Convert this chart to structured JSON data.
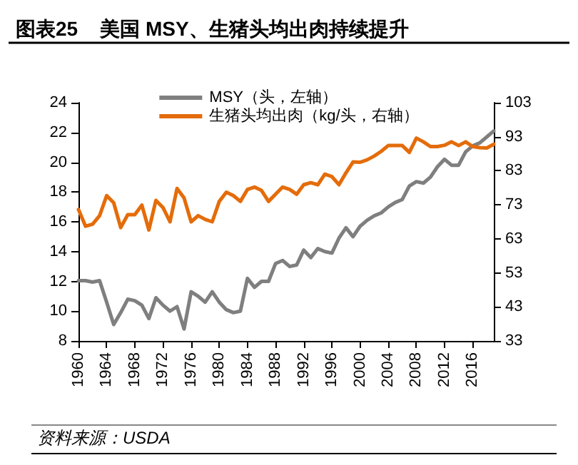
{
  "chart_data": {
    "type": "line",
    "title": "图表25    美国 MSY、生猪头均出肉持续提升",
    "x": [
      1960,
      1961,
      1962,
      1963,
      1964,
      1965,
      1966,
      1967,
      1968,
      1969,
      1970,
      1971,
      1972,
      1973,
      1974,
      1975,
      1976,
      1977,
      1978,
      1979,
      1980,
      1981,
      1982,
      1983,
      1984,
      1985,
      1986,
      1987,
      1988,
      1989,
      1990,
      1991,
      1992,
      1993,
      1994,
      1995,
      1996,
      1997,
      1998,
      1999,
      2000,
      2001,
      2002,
      2003,
      2004,
      2005,
      2006,
      2007,
      2008,
      2009,
      2010,
      2011,
      2012,
      2013,
      2014,
      2015,
      2016,
      2017,
      2018,
      2019
    ],
    "series": [
      {
        "name": "MSY（头，左轴）",
        "color": "#7f7f7f",
        "values": [
          12.05,
          12.05,
          11.95,
          12.05,
          10.6,
          9.1,
          9.9,
          10.8,
          10.7,
          10.4,
          9.5,
          10.9,
          10.4,
          10.0,
          10.3,
          8.8,
          11.3,
          11.0,
          10.6,
          11.3,
          10.6,
          10.1,
          9.9,
          10.0,
          12.2,
          11.6,
          12.0,
          12.0,
          13.2,
          13.4,
          13.0,
          13.1,
          14.1,
          13.6,
          14.2,
          14.0,
          13.9,
          14.9,
          15.6,
          15.0,
          15.7,
          16.1,
          16.4,
          16.6,
          17.0,
          17.3,
          17.5,
          18.4,
          18.7,
          18.6,
          19.0,
          19.7,
          20.2,
          19.8,
          19.8,
          20.7,
          21.1,
          21.3,
          21.7,
          22.1
        ]
      },
      {
        "name": "生猪头均出肉（kg/头，右轴）",
        "color": "#e46c0a",
        "axis": "y2",
        "values": [
          71.6,
          66.7,
          67.3,
          69.8,
          75.7,
          73.6,
          66.3,
          70.1,
          70.1,
          72.9,
          65.6,
          74.3,
          72.2,
          68.0,
          77.8,
          75.0,
          68.0,
          69.8,
          68.7,
          68.0,
          74.0,
          76.7,
          75.7,
          74.0,
          77.5,
          78.2,
          77.2,
          74.0,
          76.1,
          78.2,
          77.5,
          76.1,
          78.9,
          79.5,
          78.9,
          82.0,
          81.3,
          78.9,
          82.4,
          85.6,
          85.5,
          86.2,
          87.3,
          88.7,
          90.4,
          90.4,
          90.4,
          88.4,
          92.6,
          91.5,
          90.1,
          90.1,
          90.5,
          91.5,
          90.4,
          91.5,
          90.1,
          89.8,
          89.7,
          90.8
        ]
      }
    ],
    "xlim": [
      1960,
      2019
    ],
    "xticks": [
      1960,
      1964,
      1968,
      1972,
      1976,
      1980,
      1984,
      1988,
      1992,
      1996,
      2000,
      2004,
      2008,
      2012,
      2016
    ],
    "ylim": [
      8,
      24
    ],
    "yticks": [
      8,
      10,
      12,
      14,
      16,
      18,
      20,
      22,
      24
    ],
    "y2lim": [
      33,
      103
    ],
    "y2ticks": [
      33,
      43,
      53,
      63,
      73,
      83,
      93,
      103
    ],
    "grid": false,
    "legend": "top",
    "marker": "none",
    "line_style": "solid",
    "annotations": [
      "资料来源：USDA"
    ]
  }
}
